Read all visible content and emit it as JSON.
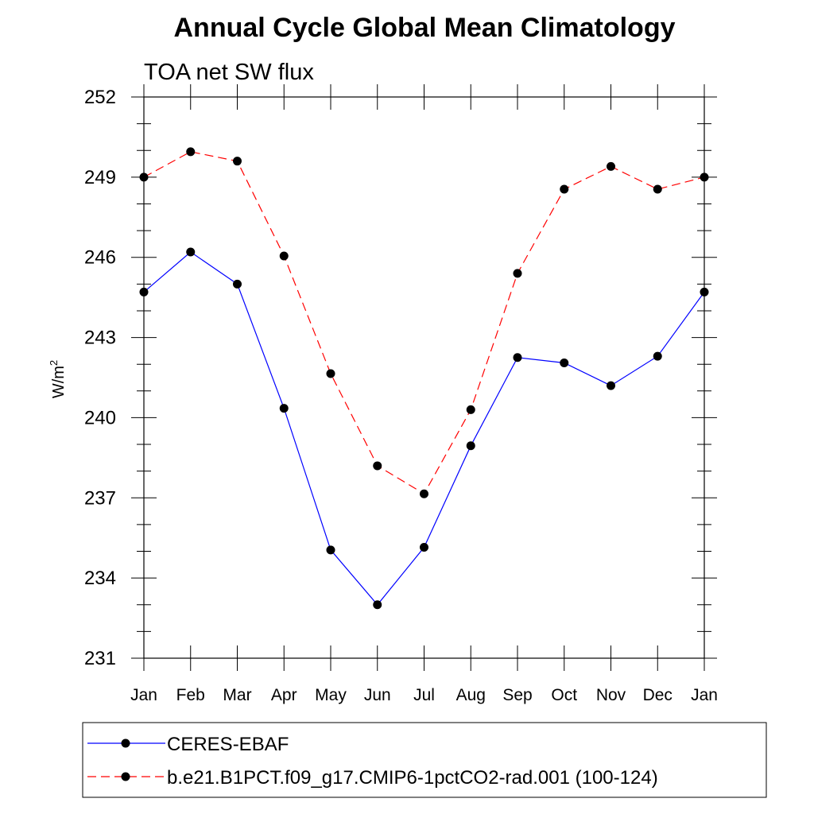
{
  "chart_data": {
    "type": "line",
    "title": "Annual Cycle Global Mean Climatology",
    "subtitle": "TOA net SW flux",
    "ylabel": "W/m",
    "ylabel_superscript": "2",
    "xlabel": "",
    "categories": [
      "Jan",
      "Feb",
      "Mar",
      "Apr",
      "May",
      "Jun",
      "Jul",
      "Aug",
      "Sep",
      "Oct",
      "Nov",
      "Dec",
      "Jan"
    ],
    "ylim": [
      231,
      252
    ],
    "yticks": [
      "231",
      "234",
      "237",
      "240",
      "243",
      "246",
      "249",
      "252"
    ],
    "grid": false,
    "legend_position": "bottom",
    "series": [
      {
        "name": "CERES-EBAF",
        "color": "#0000ff",
        "line_style": "solid",
        "marker": "filled-circle",
        "values": [
          244.7,
          246.2,
          245.0,
          240.35,
          235.05,
          233.0,
          235.15,
          238.95,
          242.25,
          242.05,
          241.2,
          242.3,
          244.7
        ]
      },
      {
        "name": "b.e21.B1PCT.f09_g17.CMIP6-1pctCO2-rad.001 (100-124)",
        "color": "#ff0000",
        "line_style": "dashed",
        "marker": "filled-circle",
        "values": [
          249.0,
          249.95,
          249.6,
          246.05,
          241.65,
          238.2,
          237.15,
          240.3,
          245.4,
          248.55,
          249.4,
          248.55,
          249.0
        ]
      }
    ]
  }
}
